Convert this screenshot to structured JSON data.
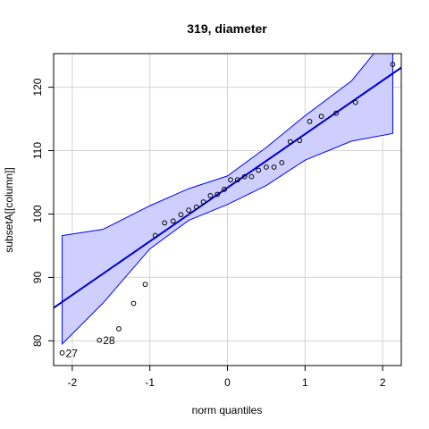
{
  "chart_data": {
    "type": "scatter",
    "title": "319, diameter",
    "xlabel": "norm quantiles",
    "ylabel": "subsetA[[column]]",
    "xlim": [
      -2.24,
      2.24
    ],
    "ylim": [
      76.1,
      125.3
    ],
    "xticks": [
      -2,
      -1,
      0,
      1,
      2
    ],
    "yticks": [
      80,
      90,
      100,
      110,
      120
    ],
    "grid": true,
    "points": [
      {
        "x": -2.13,
        "y": 78.1,
        "label": "27"
      },
      {
        "x": -1.65,
        "y": 80.1,
        "label": "28"
      },
      {
        "x": -1.4,
        "y": 81.9
      },
      {
        "x": -1.21,
        "y": 85.9
      },
      {
        "x": -1.06,
        "y": 88.9
      },
      {
        "x": -0.93,
        "y": 96.6
      },
      {
        "x": -0.81,
        "y": 98.6
      },
      {
        "x": -0.7,
        "y": 98.9
      },
      {
        "x": -0.6,
        "y": 99.9
      },
      {
        "x": -0.5,
        "y": 100.6
      },
      {
        "x": -0.4,
        "y": 101.1
      },
      {
        "x": -0.31,
        "y": 101.9
      },
      {
        "x": -0.22,
        "y": 102.9
      },
      {
        "x": -0.13,
        "y": 103.1
      },
      {
        "x": -0.04,
        "y": 103.9
      },
      {
        "x": 0.04,
        "y": 105.4
      },
      {
        "x": 0.13,
        "y": 105.4
      },
      {
        "x": 0.22,
        "y": 105.9
      },
      {
        "x": 0.31,
        "y": 105.9
      },
      {
        "x": 0.4,
        "y": 106.9
      },
      {
        "x": 0.5,
        "y": 107.4
      },
      {
        "x": 0.6,
        "y": 107.4
      },
      {
        "x": 0.7,
        "y": 108.1
      },
      {
        "x": 0.81,
        "y": 111.4
      },
      {
        "x": 0.93,
        "y": 111.6
      },
      {
        "x": 1.06,
        "y": 114.6
      },
      {
        "x": 1.21,
        "y": 115.4
      },
      {
        "x": 1.4,
        "y": 115.9
      },
      {
        "x": 1.65,
        "y": 117.6
      },
      {
        "x": 2.13,
        "y": 123.6
      }
    ],
    "ref_line": {
      "intercept": 104.15,
      "slope": 8.46
    },
    "band": {
      "x": [
        -2.13,
        -1.6,
        -1.0,
        -0.5,
        0.0,
        0.5,
        1.0,
        1.6,
        2.13
      ],
      "lower": [
        79.5,
        86.0,
        94.5,
        99.0,
        101.5,
        104.5,
        108.5,
        111.5,
        112.7
      ],
      "upper": [
        96.6,
        97.6,
        101.3,
        104.0,
        106.0,
        110.5,
        115.5,
        121.0,
        129.0
      ]
    },
    "colors": {
      "band_fill": "#cfcfff",
      "band_edge": "#0000ff",
      "ref_line": "#0000cc",
      "grid": "#d3d3d3",
      "points": "#000000"
    }
  }
}
